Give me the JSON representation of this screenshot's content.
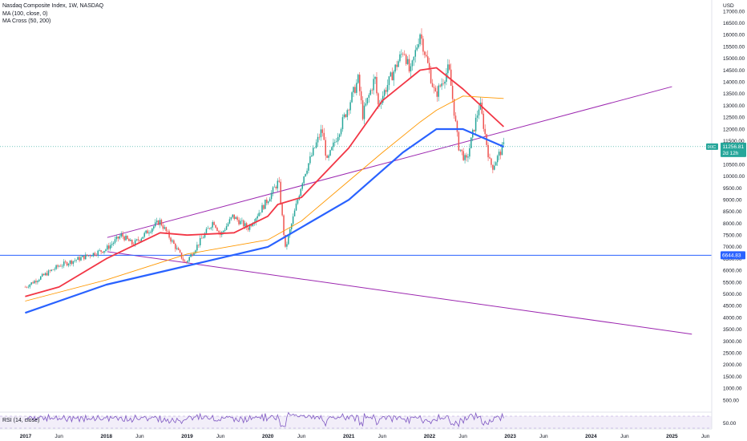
{
  "legend": {
    "title": "Nasdaq Composite Index, 1W, NASDAQ",
    "ma": "MA (100, close, 0)",
    "macross": "MA Cross (50, 200)"
  },
  "price_tag": {
    "ticker": "IXIC",
    "value": "11256.81",
    "countdown": "2d 12h"
  },
  "level_tag": "6644.83",
  "currency": "USD",
  "rsi_label": "RSI (14, close)",
  "rsi_tick": "50.00",
  "colors": {
    "up": "#26a69a",
    "down": "#ef5350",
    "ma100": "#2962ff",
    "ma50": "#f23645",
    "ma200": "#ff9800",
    "trend": "#9c27b0",
    "level": "#2962ff",
    "rsi": "#7e57c2"
  },
  "chart_data": {
    "type": "candlestick",
    "y_axis_ticks": [
      "17000.00",
      "16500.00",
      "16000.00",
      "15500.00",
      "15000.00",
      "14500.00",
      "14000.00",
      "13500.00",
      "13000.00",
      "12500.00",
      "12000.00",
      "11500.00",
      "11000.00",
      "10500.00",
      "10000.00",
      "9500.00",
      "9000.00",
      "8500.00",
      "8000.00",
      "7500.00",
      "7000.00",
      "6500.00",
      "6000.00",
      "5500.00",
      "5000.00",
      "4500.00",
      "4000.00",
      "3500.00",
      "3000.00",
      "2500.00",
      "2000.00",
      "1500.00",
      "1000.00",
      "500.00"
    ],
    "ylim": [
      0,
      17000
    ],
    "x_axis_ticks": [
      "2017",
      "Jun",
      "2018",
      "Jun",
      "2019",
      "Jun",
      "2020",
      "Jun",
      "2021",
      "Jun",
      "2022",
      "Jun",
      "2023",
      "Jun",
      "2024",
      "Jun",
      "2025",
      "Jun"
    ],
    "last_price": 11256.81,
    "horizontal_level": 6644.83,
    "price_path": [
      [
        "2016-12-30",
        5300
      ],
      [
        "2017-06-01",
        6200
      ],
      [
        "2017-12-29",
        6900
      ],
      [
        "2018-03-10",
        7500
      ],
      [
        "2018-05-01",
        7100
      ],
      [
        "2018-08-30",
        8100
      ],
      [
        "2018-12-24",
        6300
      ],
      [
        "2019-04-30",
        8100
      ],
      [
        "2019-06-01",
        7500
      ],
      [
        "2019-07-26",
        8300
      ],
      [
        "2019-10-03",
        7800
      ],
      [
        "2019-12-31",
        9000
      ],
      [
        "2020-02-19",
        9800
      ],
      [
        "2020-03-20",
        6900
      ],
      [
        "2020-06-10",
        10000
      ],
      [
        "2020-09-02",
        12000
      ],
      [
        "2020-09-25",
        10600
      ],
      [
        "2020-12-31",
        13000
      ],
      [
        "2021-02-12",
        14100
      ],
      [
        "2021-03-05",
        12600
      ],
      [
        "2021-04-29",
        14200
      ],
      [
        "2021-05-13",
        13000
      ],
      [
        "2021-09-07",
        15400
      ],
      [
        "2021-10-05",
        14300
      ],
      [
        "2021-11-19",
        16100
      ],
      [
        "2022-01-27",
        13400
      ],
      [
        "2022-03-29",
        14600
      ],
      [
        "2022-05-11",
        11300
      ],
      [
        "2022-06-16",
        10600
      ],
      [
        "2022-08-16",
        13100
      ],
      [
        "2022-09-30",
        10600
      ],
      [
        "2022-10-13",
        10400
      ],
      [
        "2022-12-02",
        11300
      ]
    ],
    "series": [
      {
        "name": "MA (100, close, 0)",
        "points": [
          [
            "2016-12-30",
            4200
          ],
          [
            "2018-01-01",
            5400
          ],
          [
            "2019-01-01",
            6200
          ],
          [
            "2020-01-01",
            7000
          ],
          [
            "2021-01-01",
            9000
          ],
          [
            "2021-09-01",
            11000
          ],
          [
            "2022-02-01",
            12000
          ],
          [
            "2022-06-01",
            12000
          ],
          [
            "2022-12-02",
            11250
          ]
        ]
      },
      {
        "name": "MA Cross (50, 200) fast",
        "points": [
          [
            "2016-12-30",
            4900
          ],
          [
            "2017-06-01",
            5300
          ],
          [
            "2018-01-01",
            6500
          ],
          [
            "2018-09-01",
            7600
          ],
          [
            "2019-01-01",
            7500
          ],
          [
            "2019-08-01",
            7600
          ],
          [
            "2020-01-01",
            8300
          ],
          [
            "2020-02-15",
            8800
          ],
          [
            "2020-06-01",
            9100
          ],
          [
            "2021-01-01",
            11200
          ],
          [
            "2021-06-01",
            13200
          ],
          [
            "2021-11-19",
            14500
          ],
          [
            "2022-02-01",
            14600
          ],
          [
            "2022-06-01",
            13700
          ],
          [
            "2022-12-02",
            12100
          ]
        ]
      },
      {
        "name": "MA Cross (50, 200) slow",
        "points": [
          [
            "2016-12-30",
            4700
          ],
          [
            "2018-01-01",
            5600
          ],
          [
            "2019-01-01",
            6700
          ],
          [
            "2020-01-01",
            7300
          ],
          [
            "2020-06-01",
            8100
          ],
          [
            "2021-01-01",
            9800
          ],
          [
            "2021-06-01",
            11000
          ],
          [
            "2021-11-19",
            12300
          ],
          [
            "2022-02-01",
            12800
          ],
          [
            "2022-06-01",
            13400
          ],
          [
            "2022-12-02",
            13300
          ]
        ]
      }
    ],
    "trend_lines": [
      {
        "from": [
          "2018-01-05",
          7400
        ],
        "to": [
          "2025-01-01",
          13800
        ]
      },
      {
        "from": [
          "2018-01-05",
          6800
        ],
        "to": [
          "2025-04-01",
          3300
        ]
      }
    ]
  }
}
